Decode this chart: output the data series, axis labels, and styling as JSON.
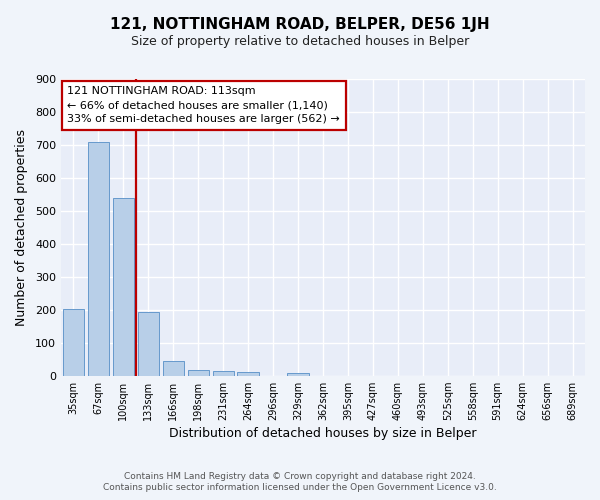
{
  "title": "121, NOTTINGHAM ROAD, BELPER, DE56 1JH",
  "subtitle": "Size of property relative to detached houses in Belper",
  "xlabel": "Distribution of detached houses by size in Belper",
  "ylabel": "Number of detached properties",
  "bar_labels": [
    "35sqm",
    "67sqm",
    "100sqm",
    "133sqm",
    "166sqm",
    "198sqm",
    "231sqm",
    "264sqm",
    "296sqm",
    "329sqm",
    "362sqm",
    "395sqm",
    "427sqm",
    "460sqm",
    "493sqm",
    "525sqm",
    "558sqm",
    "591sqm",
    "624sqm",
    "656sqm",
    "689sqm"
  ],
  "bar_values": [
    203,
    710,
    538,
    192,
    45,
    17,
    13,
    10,
    0,
    8,
    0,
    0,
    0,
    0,
    0,
    0,
    0,
    0,
    0,
    0,
    0
  ],
  "bar_color": "#b8cfe8",
  "bar_edge_color": "#6699cc",
  "fig_bg_color": "#f0f4fa",
  "axes_bg_color": "#e8edf8",
  "grid_color": "#ffffff",
  "vline_x": 2.5,
  "vline_color": "#bb0000",
  "annotation_text": "121 NOTTINGHAM ROAD: 113sqm\n← 66% of detached houses are smaller (1,140)\n33% of semi-detached houses are larger (562) →",
  "annotation_box_facecolor": "#ffffff",
  "annotation_box_edgecolor": "#bb0000",
  "ylim": [
    0,
    900
  ],
  "yticks": [
    0,
    100,
    200,
    300,
    400,
    500,
    600,
    700,
    800,
    900
  ],
  "footer_line1": "Contains HM Land Registry data © Crown copyright and database right 2024.",
  "footer_line2": "Contains public sector information licensed under the Open Government Licence v3.0.",
  "title_fontsize": 11,
  "subtitle_fontsize": 9,
  "xlabel_fontsize": 9,
  "ylabel_fontsize": 9,
  "tick_fontsize": 8,
  "xtick_fontsize": 7,
  "annot_fontsize": 8,
  "footer_fontsize": 6.5
}
